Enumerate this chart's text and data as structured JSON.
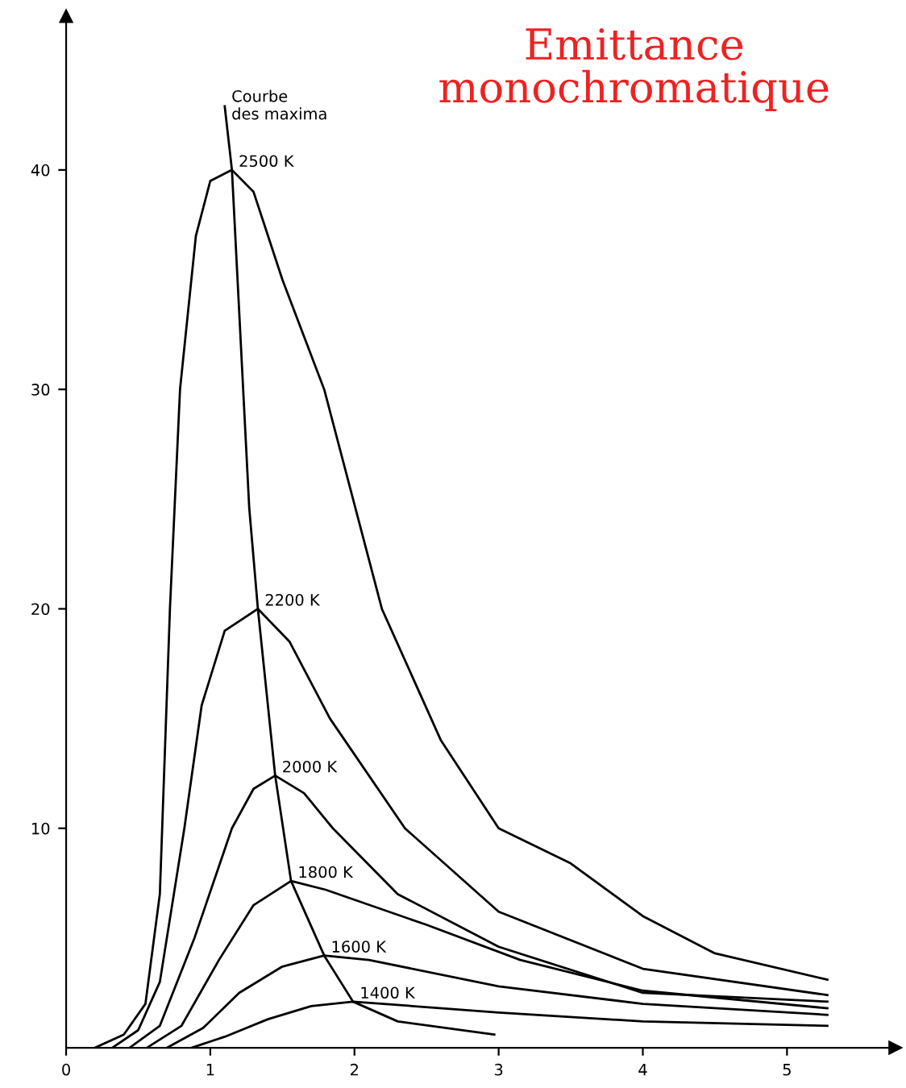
{
  "chart_data": {
    "type": "line",
    "title": "Emittance\nmonochromatique",
    "xlim": [
      0,
      5.75
    ],
    "ylim": [
      0,
      47
    ],
    "xticks": [
      0,
      1,
      2,
      3,
      4,
      5
    ],
    "yticks": [
      10,
      20,
      30,
      40
    ],
    "grid": false,
    "legend": false,
    "marker": "none",
    "line_style": "solid",
    "series": [
      {
        "name": "2500 K",
        "color": "#000000",
        "x": [
          0.2,
          0.4,
          0.55,
          0.65,
          0.72,
          0.79,
          0.9,
          1.0,
          1.15,
          1.3,
          1.5,
          1.79,
          2.19,
          2.6,
          3.0,
          3.5,
          4.0,
          4.5,
          5.28
        ],
        "values": [
          0,
          0.6,
          2,
          7,
          20,
          30,
          37,
          39.5,
          40,
          39,
          35,
          30,
          20,
          14,
          10,
          8.4,
          6,
          4.3,
          3.1
        ]
      },
      {
        "name": "2200 K",
        "color": "#000000",
        "x": [
          0.32,
          0.5,
          0.65,
          0.82,
          0.94,
          1.1,
          1.33,
          1.55,
          1.83,
          2.35,
          3.0,
          4.0,
          5.28
        ],
        "values": [
          0,
          0.8,
          3,
          10,
          15.6,
          19,
          20,
          18.5,
          15,
          10,
          6.2,
          3.6,
          2.4
        ]
      },
      {
        "name": "2000 K",
        "color": "#000000",
        "x": [
          0.44,
          0.65,
          0.89,
          1.15,
          1.3,
          1.45,
          1.65,
          1.85,
          2.3,
          3.0,
          4.0,
          5.28
        ],
        "values": [
          0,
          1,
          5,
          10,
          11.8,
          12.4,
          11.6,
          10,
          7,
          4.6,
          2.5,
          2.1
        ]
      },
      {
        "name": "1800 K",
        "color": "#000000",
        "x": [
          0.56,
          0.8,
          1.06,
          1.3,
          1.56,
          1.8,
          2.5,
          3.15,
          4.0,
          5.28
        ],
        "values": [
          0,
          1,
          4,
          6.5,
          7.6,
          7.2,
          5.6,
          4,
          2.6,
          1.8
        ]
      },
      {
        "name": "1600 K",
        "color": "#000000",
        "x": [
          0.7,
          0.95,
          1.2,
          1.5,
          1.79,
          2.1,
          3.0,
          4.0,
          5.28
        ],
        "values": [
          0,
          0.9,
          2.5,
          3.7,
          4.2,
          4.0,
          2.8,
          2.0,
          1.5
        ]
      },
      {
        "name": "1400 K",
        "color": "#000000",
        "x": [
          0.87,
          1.1,
          1.4,
          1.7,
          1.99,
          2.4,
          3.0,
          4.0,
          5.28
        ],
        "values": [
          0,
          0.5,
          1.3,
          1.9,
          2.1,
          1.9,
          1.6,
          1.2,
          1.0
        ]
      },
      {
        "name": "Courbe\ndes maxima",
        "color": "#000000",
        "x": [
          1.1,
          1.15,
          1.27,
          1.33,
          1.45,
          1.56,
          1.79,
          1.99,
          2.3,
          2.97
        ],
        "values": [
          42.9,
          40,
          24.6,
          20,
          12.4,
          7.6,
          4.2,
          2.1,
          1.2,
          0.6
        ]
      }
    ]
  }
}
